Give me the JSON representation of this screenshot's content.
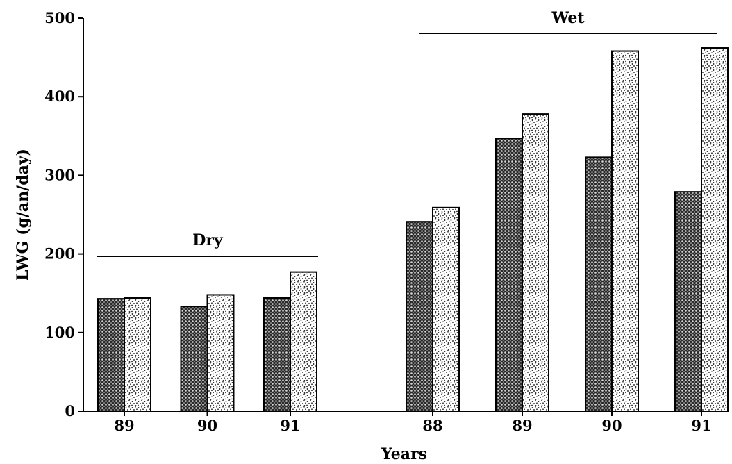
{
  "chart_data": {
    "type": "bar",
    "title": "",
    "xlabel": "Years",
    "ylabel": "LWG (g/an/day)",
    "ylim": [
      0,
      500
    ],
    "yticks": [
      0,
      100,
      200,
      300,
      400,
      500
    ],
    "grid": false,
    "groups": [
      {
        "label": "Dry",
        "categories": [
          "89",
          "90",
          "91"
        ],
        "series": [
          {
            "pattern": "crosshatch-dark",
            "values": [
              143,
              133,
              144
            ]
          },
          {
            "pattern": "stipple-light",
            "values": [
              144,
              148,
              177
            ]
          }
        ]
      },
      {
        "label": "Wet",
        "categories": [
          "88",
          "89",
          "90",
          "91"
        ],
        "series": [
          {
            "pattern": "crosshatch-dark",
            "values": [
              241,
              347,
              323,
              279
            ]
          },
          {
            "pattern": "stipple-light",
            "values": [
              259,
              378,
              458,
              462
            ]
          }
        ]
      }
    ]
  }
}
